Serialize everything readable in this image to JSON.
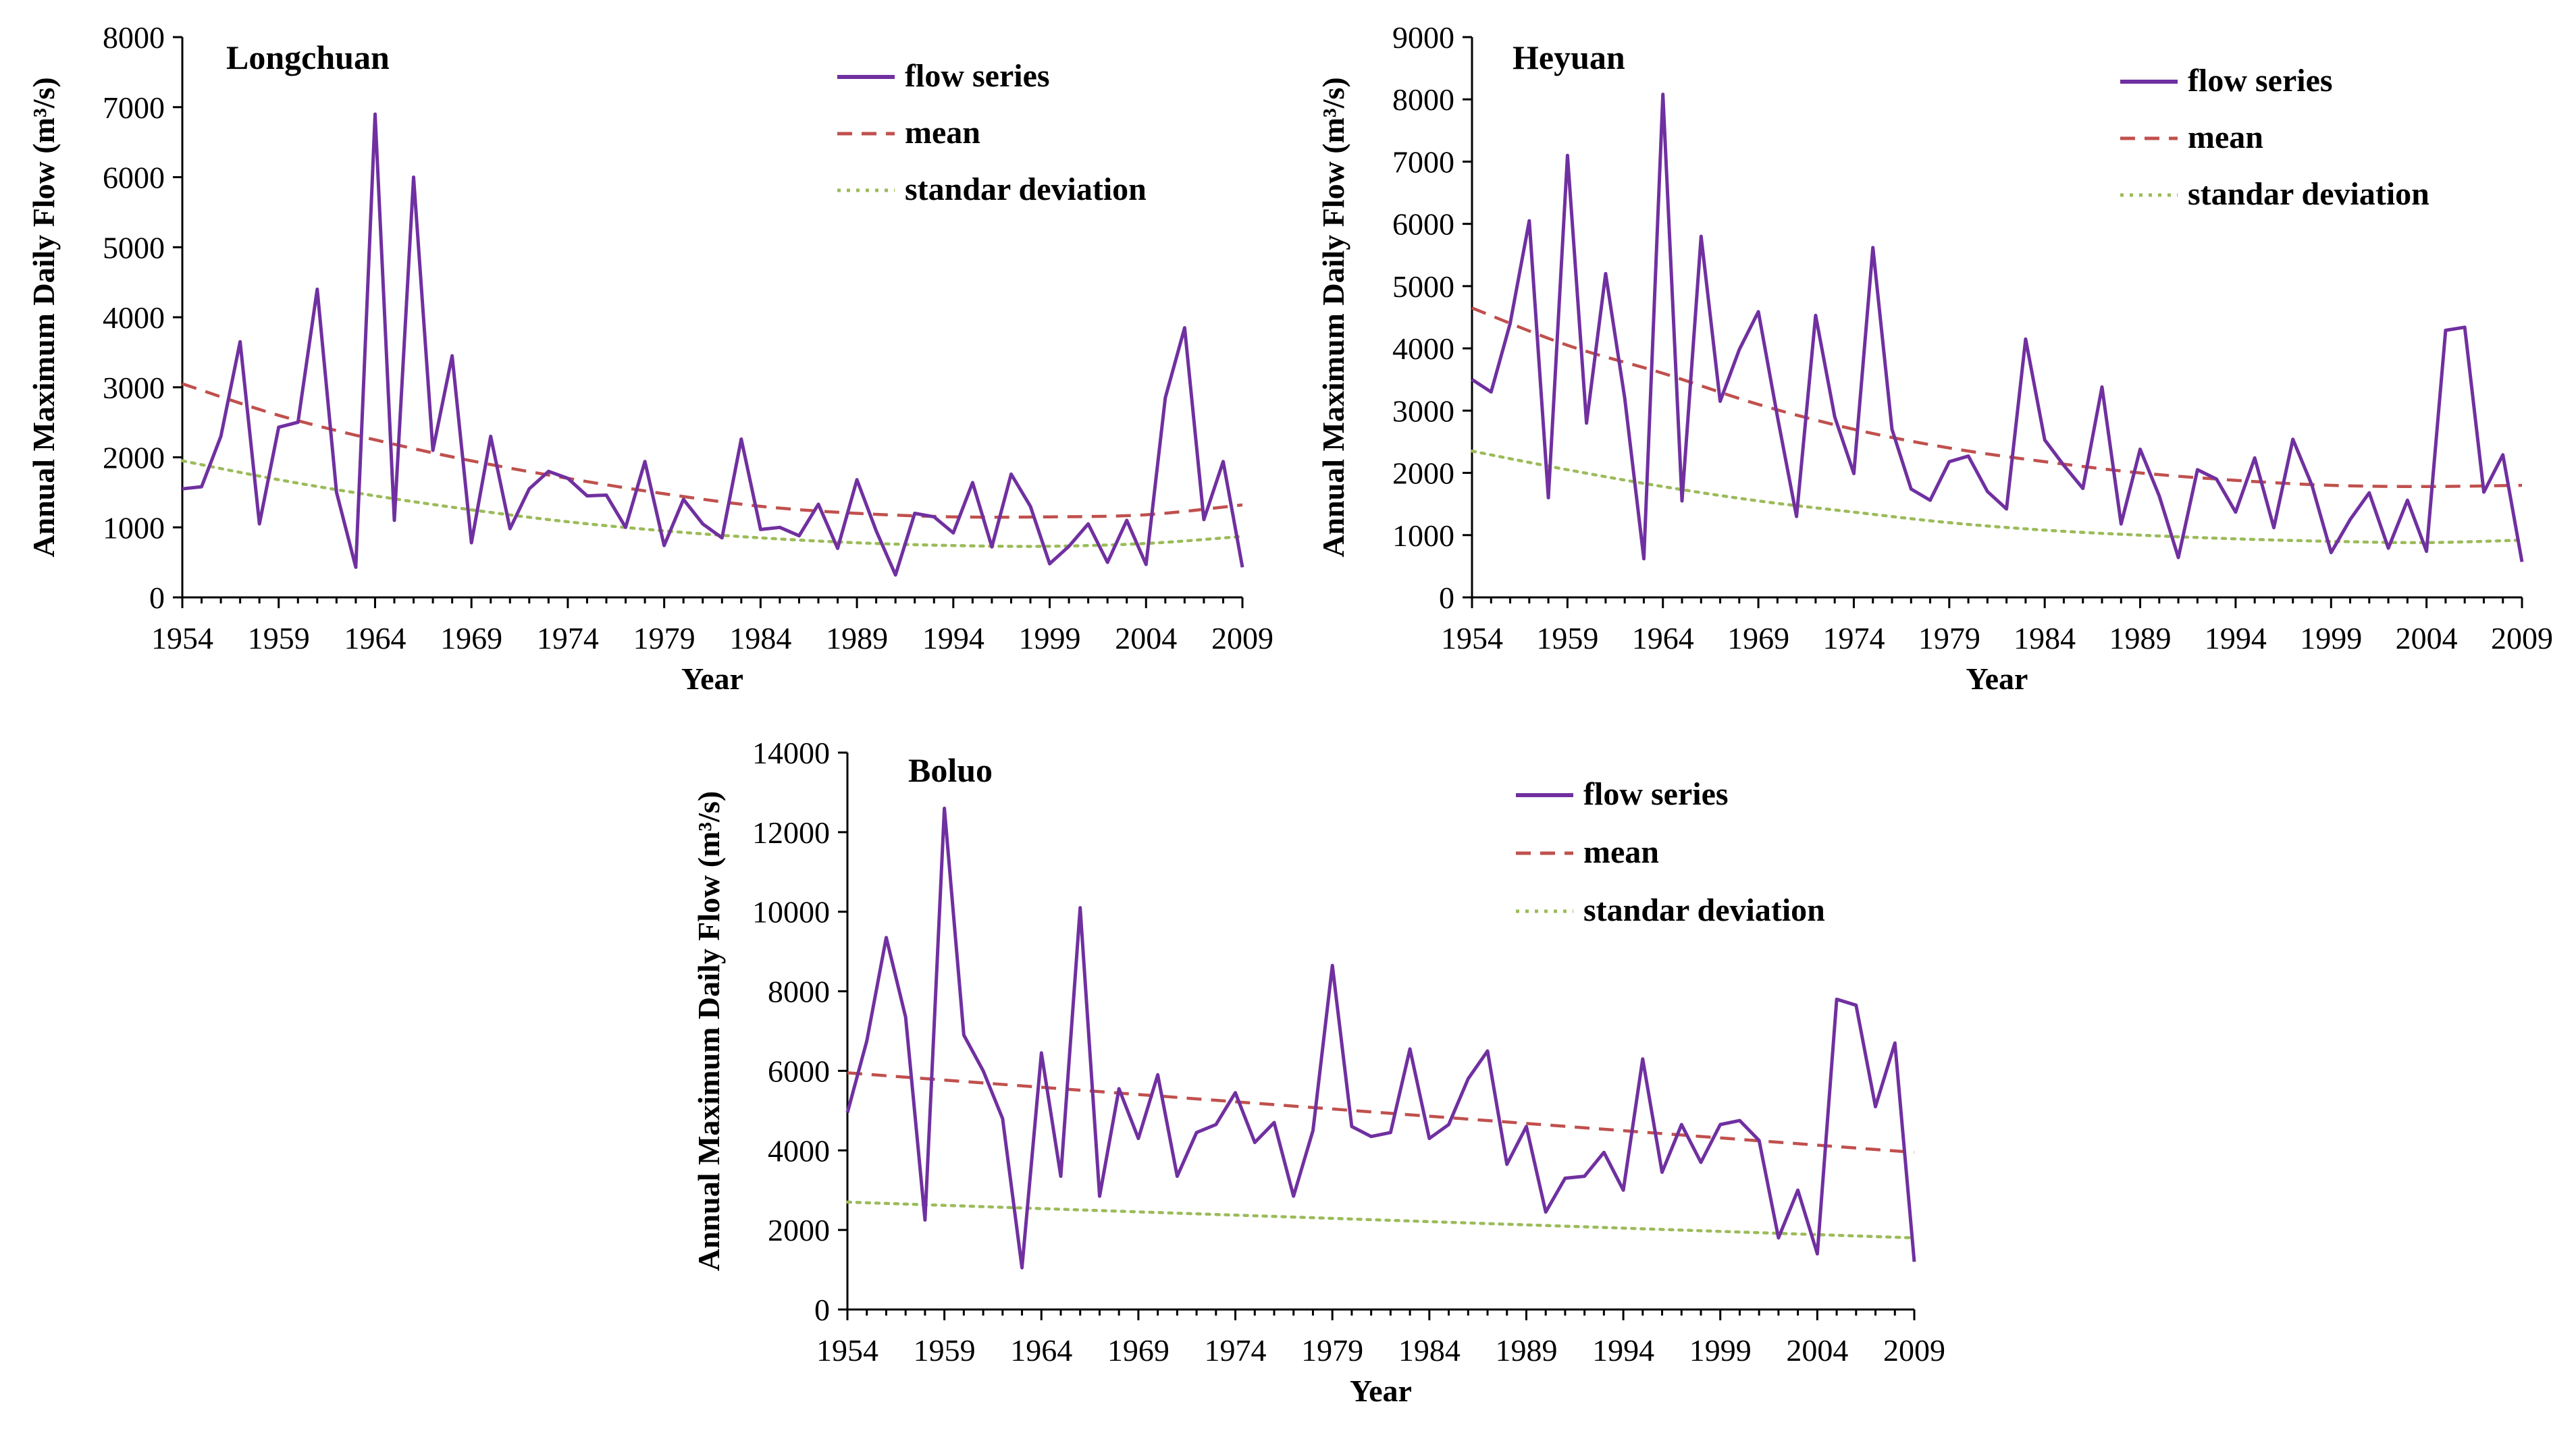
{
  "chart_data": [
    {
      "type": "line",
      "title": "Longchuan",
      "xlabel": "Year",
      "ylabel": "Annual Maximum Daily Flow  (m³/s)",
      "ylim": [
        0,
        8000
      ],
      "yticks": [
        0,
        1000,
        2000,
        3000,
        4000,
        5000,
        6000,
        7000,
        8000
      ],
      "xlim": [
        1954,
        2009
      ],
      "xticks": [
        1954,
        1959,
        1964,
        1969,
        1974,
        1979,
        1984,
        1989,
        1994,
        1999,
        2004,
        2009
      ],
      "legend_position": "top-right",
      "series": [
        {
          "name": "flow series",
          "style": "solid",
          "color": "#7030a0",
          "x": [
            1954,
            1955,
            1956,
            1957,
            1958,
            1959,
            1960,
            1961,
            1962,
            1963,
            1964,
            1965,
            1966,
            1967,
            1968,
            1969,
            1970,
            1971,
            1972,
            1973,
            1974,
            1975,
            1976,
            1977,
            1978,
            1979,
            1980,
            1981,
            1982,
            1983,
            1984,
            1985,
            1986,
            1987,
            1988,
            1989,
            1990,
            1991,
            1992,
            1993,
            1994,
            1995,
            1996,
            1997,
            1998,
            1999,
            2000,
            2001,
            2002,
            2003,
            2004,
            2005,
            2006,
            2007,
            2008,
            2009
          ],
          "values": [
            1550,
            1580,
            2300,
            3650,
            1050,
            2430,
            2500,
            4400,
            1500,
            430,
            6900,
            1100,
            6000,
            2100,
            3450,
            780,
            2300,
            980,
            1550,
            1800,
            1700,
            1450,
            1460,
            1000,
            1940,
            740,
            1400,
            1050,
            850,
            2260,
            970,
            1000,
            880,
            1330,
            700,
            1680,
            950,
            320,
            1200,
            1150,
            920,
            1640,
            720,
            1760,
            1300,
            480,
            730,
            1050,
            500,
            1100,
            470,
            2850,
            3850,
            1110,
            1940,
            430
          ]
        },
        {
          "name": "mean",
          "style": "dashed",
          "color": "#c0504d",
          "x": [
            1954,
            1959,
            1964,
            1969,
            1974,
            1979,
            1984,
            1989,
            1994,
            1999,
            2004,
            2009
          ],
          "values": [
            3050,
            2600,
            2250,
            1950,
            1700,
            1480,
            1300,
            1200,
            1150,
            1150,
            1180,
            1320
          ]
        },
        {
          "name": "standar deviation",
          "style": "dotted",
          "color": "#9bbb59",
          "x": [
            1954,
            1959,
            1964,
            1969,
            1974,
            1979,
            1984,
            1989,
            1994,
            1999,
            2004,
            2009
          ],
          "values": [
            1950,
            1680,
            1450,
            1250,
            1080,
            950,
            850,
            780,
            740,
            730,
            770,
            870
          ]
        }
      ]
    },
    {
      "type": "line",
      "title": "Heyuan",
      "xlabel": "Year",
      "ylabel": "Annual Maximum Daily Flow  (m³/s)",
      "ylim": [
        0,
        9000
      ],
      "yticks": [
        0,
        1000,
        2000,
        3000,
        4000,
        5000,
        6000,
        7000,
        8000,
        9000
      ],
      "xlim": [
        1954,
        2009
      ],
      "xticks": [
        1954,
        1959,
        1964,
        1969,
        1974,
        1979,
        1984,
        1989,
        1994,
        1999,
        2004,
        2009
      ],
      "legend_position": "top-right",
      "series": [
        {
          "name": "flow series",
          "style": "solid",
          "color": "#7030a0",
          "x": [
            1954,
            1955,
            1956,
            1957,
            1958,
            1959,
            1960,
            1961,
            1962,
            1963,
            1964,
            1965,
            1966,
            1967,
            1968,
            1969,
            1970,
            1971,
            1972,
            1973,
            1974,
            1975,
            1976,
            1977,
            1978,
            1979,
            1980,
            1981,
            1982,
            1983,
            1984,
            1985,
            1986,
            1987,
            1988,
            1989,
            1990,
            1991,
            1992,
            1993,
            1994,
            1995,
            1996,
            1997,
            1998,
            1999,
            2000,
            2001,
            2002,
            2003,
            2004,
            2005,
            2006,
            2007,
            2008,
            2009
          ],
          "values": [
            3500,
            3300,
            4400,
            6050,
            1600,
            7100,
            2800,
            5200,
            3200,
            620,
            8080,
            1550,
            5800,
            3150,
            3980,
            4590,
            2900,
            1300,
            4530,
            2900,
            1990,
            5620,
            2700,
            1740,
            1560,
            2180,
            2270,
            1700,
            1420,
            4150,
            2530,
            2120,
            1750,
            3380,
            1180,
            2380,
            1630,
            640,
            2050,
            1900,
            1370,
            2240,
            1120,
            2540,
            1800,
            720,
            1250,
            1680,
            790,
            1560,
            740,
            4290,
            4340,
            1690,
            2290,
            570
          ]
        },
        {
          "name": "mean",
          "style": "dashed",
          "color": "#c0504d",
          "x": [
            1954,
            1959,
            1964,
            1969,
            1974,
            1979,
            1984,
            1989,
            1994,
            1999,
            2004,
            2009
          ],
          "values": [
            4650,
            4050,
            3600,
            3100,
            2700,
            2400,
            2180,
            2000,
            1880,
            1800,
            1780,
            1800
          ]
        },
        {
          "name": "standar deviation",
          "style": "dotted",
          "color": "#9bbb59",
          "x": [
            1954,
            1959,
            1964,
            1969,
            1974,
            1979,
            1984,
            1989,
            1994,
            1999,
            2004,
            2009
          ],
          "values": [
            2350,
            2050,
            1780,
            1550,
            1370,
            1200,
            1080,
            1000,
            940,
            900,
            880,
            920
          ]
        }
      ]
    },
    {
      "type": "line",
      "title": "Boluo",
      "xlabel": "Year",
      "ylabel": "Annual Maximum Daily Flow  (m³/s)",
      "ylim": [
        0,
        14000
      ],
      "yticks": [
        0,
        2000,
        4000,
        6000,
        8000,
        10000,
        12000,
        14000
      ],
      "xlim": [
        1954,
        2009
      ],
      "xticks": [
        1954,
        1959,
        1964,
        1969,
        1974,
        1979,
        1984,
        1989,
        1994,
        1999,
        2004,
        2009
      ],
      "legend_position": "top-right",
      "series": [
        {
          "name": "flow series",
          "style": "solid",
          "color": "#7030a0",
          "x": [
            1954,
            1955,
            1956,
            1957,
            1958,
            1959,
            1960,
            1961,
            1962,
            1963,
            1964,
            1965,
            1966,
            1967,
            1968,
            1969,
            1970,
            1971,
            1972,
            1973,
            1974,
            1975,
            1976,
            1977,
            1978,
            1979,
            1980,
            1981,
            1982,
            1983,
            1984,
            1985,
            1986,
            1987,
            1988,
            1989,
            1990,
            1991,
            1992,
            1993,
            1994,
            1995,
            1996,
            1997,
            1998,
            1999,
            2000,
            2001,
            2002,
            2003,
            2004,
            2005,
            2006,
            2007,
            2008,
            2009
          ],
          "values": [
            4950,
            6750,
            9350,
            7350,
            2250,
            12600,
            6900,
            6000,
            4800,
            1050,
            6450,
            3350,
            10100,
            2850,
            5550,
            4300,
            5900,
            3350,
            4450,
            4650,
            5450,
            4200,
            4700,
            2850,
            4500,
            8650,
            4600,
            4350,
            4450,
            6550,
            4300,
            4650,
            5800,
            6500,
            3650,
            4600,
            2450,
            3300,
            3350,
            3950,
            3000,
            6300,
            3450,
            4650,
            3700,
            4650,
            4750,
            4250,
            1800,
            3000,
            1400,
            7800,
            7650,
            5100,
            6700,
            1200
          ]
        },
        {
          "name": "mean",
          "style": "dashed",
          "color": "#c0504d",
          "x": [
            1954,
            2009
          ],
          "values": [
            5950,
            3950
          ]
        },
        {
          "name": "standar deviation",
          "style": "dotted",
          "color": "#9bbb59",
          "x": [
            1954,
            2009
          ],
          "values": [
            2700,
            1800
          ]
        }
      ]
    }
  ]
}
